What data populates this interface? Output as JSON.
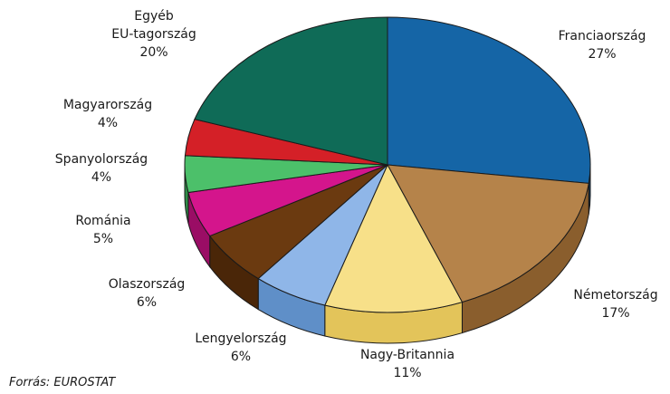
{
  "chart_data": {
    "type": "pie",
    "title": "",
    "slices": [
      {
        "label": "Franciaország",
        "value": 27,
        "value_text": "27%",
        "color": "#1565a6",
        "side_color": "#0d3f6a"
      },
      {
        "label": "Németország",
        "value": 17,
        "value_text": "17%",
        "color": "#b5834a",
        "side_color": "#8a5e2d"
      },
      {
        "label": "Nagy-Britannia",
        "value": 11,
        "value_text": "11%",
        "color": "#f7e089",
        "side_color": "#e3c45a"
      },
      {
        "label": "Lengyelország",
        "value": 6,
        "value_text": "6%",
        "color": "#8fb6e8",
        "side_color": "#5f8fc8"
      },
      {
        "label": "Olaszország",
        "value": 6,
        "value_text": "6%",
        "color": "#6b3a10",
        "side_color": "#4a2608"
      },
      {
        "label": "Románia",
        "value": 5,
        "value_text": "5%",
        "color": "#d4158c",
        "side_color": "#9a0d65"
      },
      {
        "label": "Spanyolország",
        "value": 4,
        "value_text": "4%",
        "color": "#4cc06a",
        "side_color": "#2f8d48"
      },
      {
        "label": "Magyarország",
        "value": 4,
        "value_text": "4%",
        "color": "#d42027",
        "side_color": "#9a1418"
      },
      {
        "label": "Egyéb EU-tagország",
        "label_lines": [
          "Egyéb",
          "EU-tagország"
        ],
        "value": 20,
        "value_text": "20%",
        "color": "#0f6b57",
        "side_color": "#0a4a3c"
      }
    ]
  },
  "source": "Forrás: EUROSTAT"
}
